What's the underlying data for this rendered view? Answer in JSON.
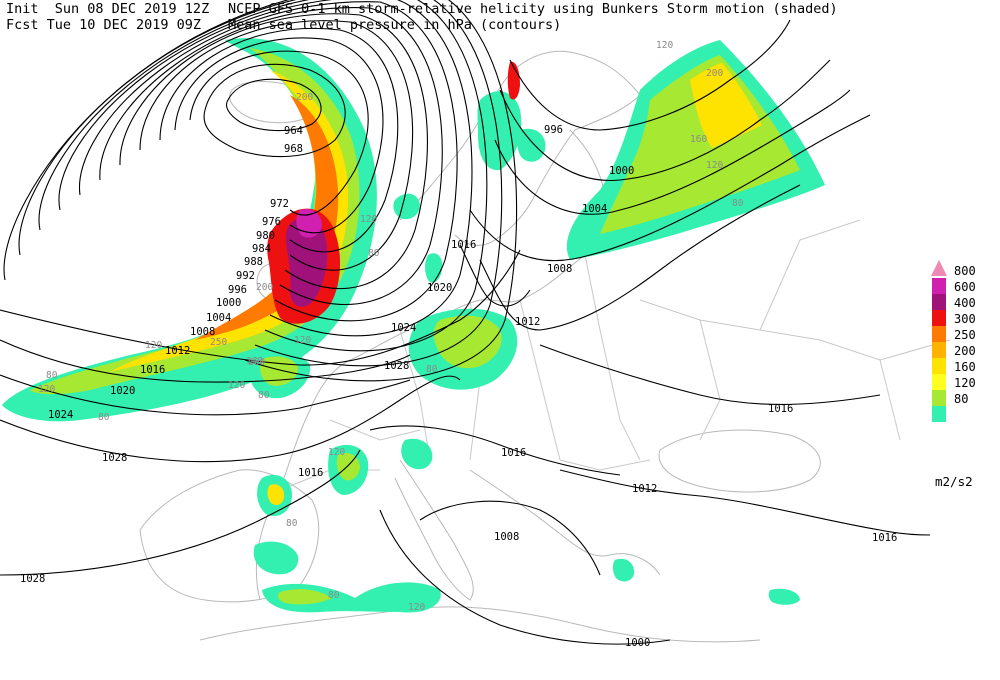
{
  "header": {
    "line1_left": "Init  Sun 08 DEC 2019 12Z",
    "line1_right": "NCEP GFS 0-1 km storm-relative helicity using Bunkers Storm motion (shaded)",
    "line2_left": "Fcst Tue 10 DEC 2019 09Z",
    "line2_right": "Mean sea level pressure in hPa (contours)"
  },
  "legend": {
    "units": "m2/s2",
    "levels": [
      {
        "label": "800",
        "color": "#ee88b4"
      },
      {
        "label": "600",
        "color": "#d11fb0"
      },
      {
        "label": "400",
        "color": "#a0127a"
      },
      {
        "label": "300",
        "color": "#ee1111"
      },
      {
        "label": "250",
        "color": "#ff7a00"
      },
      {
        "label": "200",
        "color": "#ffb300"
      },
      {
        "label": "160",
        "color": "#ffe300"
      },
      {
        "label": "120",
        "color": "#ffff22"
      },
      {
        "label": "80",
        "color": "#a6e832"
      },
      {
        "label": "",
        "color": "#33f0b0"
      }
    ]
  },
  "pressure_labels": [
    {
      "text": "964"
    },
    {
      "text": "968"
    },
    {
      "text": "972"
    },
    {
      "text": "976"
    },
    {
      "text": "980"
    },
    {
      "text": "984"
    },
    {
      "text": "988"
    },
    {
      "text": "992"
    },
    {
      "text": "996"
    },
    {
      "text": "1000"
    },
    {
      "text": "1004"
    },
    {
      "text": "1008"
    },
    {
      "text": "1012"
    },
    {
      "text": "1016"
    },
    {
      "text": "1016"
    },
    {
      "text": "1020"
    },
    {
      "text": "1024"
    },
    {
      "text": "1028"
    },
    {
      "text": "1028"
    },
    {
      "text": "1028"
    },
    {
      "text": "1024"
    },
    {
      "text": "1016"
    },
    {
      "text": "1020"
    },
    {
      "text": "1012"
    },
    {
      "text": "1008"
    },
    {
      "text": "1004"
    },
    {
      "text": "1000"
    },
    {
      "text": "996"
    },
    {
      "text": "1016"
    },
    {
      "text": "1012"
    },
    {
      "text": "1016"
    },
    {
      "text": "1008"
    },
    {
      "text": "1000"
    },
    {
      "text": "1016"
    }
  ],
  "helicity_labels": [
    {
      "text": "120"
    },
    {
      "text": "80"
    },
    {
      "text": "120"
    },
    {
      "text": "160"
    },
    {
      "text": "250"
    },
    {
      "text": "200"
    },
    {
      "text": "120"
    },
    {
      "text": "80"
    },
    {
      "text": "120"
    },
    {
      "text": "80"
    },
    {
      "text": "80"
    },
    {
      "text": "120"
    },
    {
      "text": "200"
    },
    {
      "text": "160"
    },
    {
      "text": "120"
    },
    {
      "text": "80"
    },
    {
      "text": "120"
    },
    {
      "text": "80"
    },
    {
      "text": "120"
    },
    {
      "text": "200"
    },
    {
      "text": "80"
    },
    {
      "text": "120"
    },
    {
      "text": "160"
    },
    {
      "text": "80"
    }
  ]
}
